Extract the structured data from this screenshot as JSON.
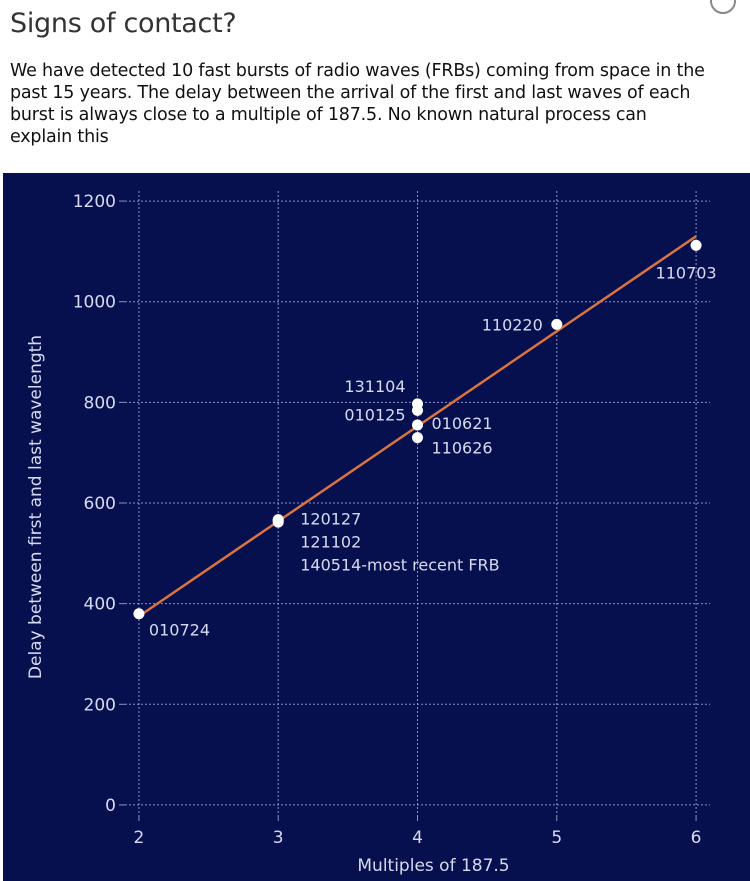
{
  "header": {
    "title": "Signs of contact?",
    "subtitle": "We have detected 10 fast bursts of radio waves (FRBs) coming from space in the past 15 years. The delay between the arrival of the first and last waves of each burst is always close to a multiple of 187.5. No known natural process can explain this"
  },
  "colors": {
    "panel_bg": "#07104f",
    "grid": "#8a93c4",
    "axis_text": "#d7dbef",
    "trend_line": "#d9733f",
    "point": "#ffffff"
  },
  "chart_data": {
    "type": "scatter",
    "xlabel": "Multiples of 187.5",
    "ylabel": "Delay between first and last wavelength",
    "xlim": [
      1.9,
      6.1
    ],
    "ylim": [
      -20,
      1220
    ],
    "x_ticks": [
      2,
      3,
      4,
      5,
      6
    ],
    "y_ticks": [
      0,
      200,
      400,
      600,
      800,
      1000,
      1200
    ],
    "grid": true,
    "points": [
      {
        "x": 2,
        "y": 380,
        "label": "010724"
      },
      {
        "x": 3,
        "y": 565,
        "label": "120127"
      },
      {
        "x": 3,
        "y": 567,
        "label": "121102"
      },
      {
        "x": 3,
        "y": 562,
        "label": "140514-most recent FRB"
      },
      {
        "x": 4,
        "y": 797,
        "label": "131104"
      },
      {
        "x": 4,
        "y": 784,
        "label": "010125"
      },
      {
        "x": 4,
        "y": 755,
        "label": "010621"
      },
      {
        "x": 4,
        "y": 730,
        "label": "110626"
      },
      {
        "x": 5,
        "y": 955,
        "label": "110220"
      },
      {
        "x": 6,
        "y": 1112,
        "label": "110703"
      }
    ],
    "trend_line": {
      "x": [
        2,
        6
      ],
      "y": [
        375,
        1130
      ]
    },
    "point_labels": [
      {
        "text": "010724",
        "x": 2,
        "y": 380,
        "align": "start",
        "dx": 10,
        "dy": 22
      },
      {
        "text": "120127",
        "x": 3,
        "y": 565,
        "align": "start",
        "dx": 22,
        "dy": 4
      },
      {
        "text": "121102",
        "x": 3,
        "y": 565,
        "align": "start",
        "dx": 22,
        "dy": 27
      },
      {
        "text": "140514-most recent FRB",
        "x": 3,
        "y": 565,
        "align": "start",
        "dx": 22,
        "dy": 50
      },
      {
        "text": "131104",
        "x": 4,
        "y": 797,
        "align": "end",
        "dx": -12,
        "dy": -12
      },
      {
        "text": "010125",
        "x": 4,
        "y": 784,
        "align": "end",
        "dx": -12,
        "dy": 10
      },
      {
        "text": "010621",
        "x": 4,
        "y": 755,
        "align": "start",
        "dx": 14,
        "dy": 4
      },
      {
        "text": "110626",
        "x": 4,
        "y": 730,
        "align": "start",
        "dx": 14,
        "dy": 16
      },
      {
        "text": "110220",
        "x": 5,
        "y": 955,
        "align": "end",
        "dx": -14,
        "dy": 6
      },
      {
        "text": "110703",
        "x": 6,
        "y": 1112,
        "align": "middle",
        "dx": -10,
        "dy": 33
      }
    ]
  }
}
